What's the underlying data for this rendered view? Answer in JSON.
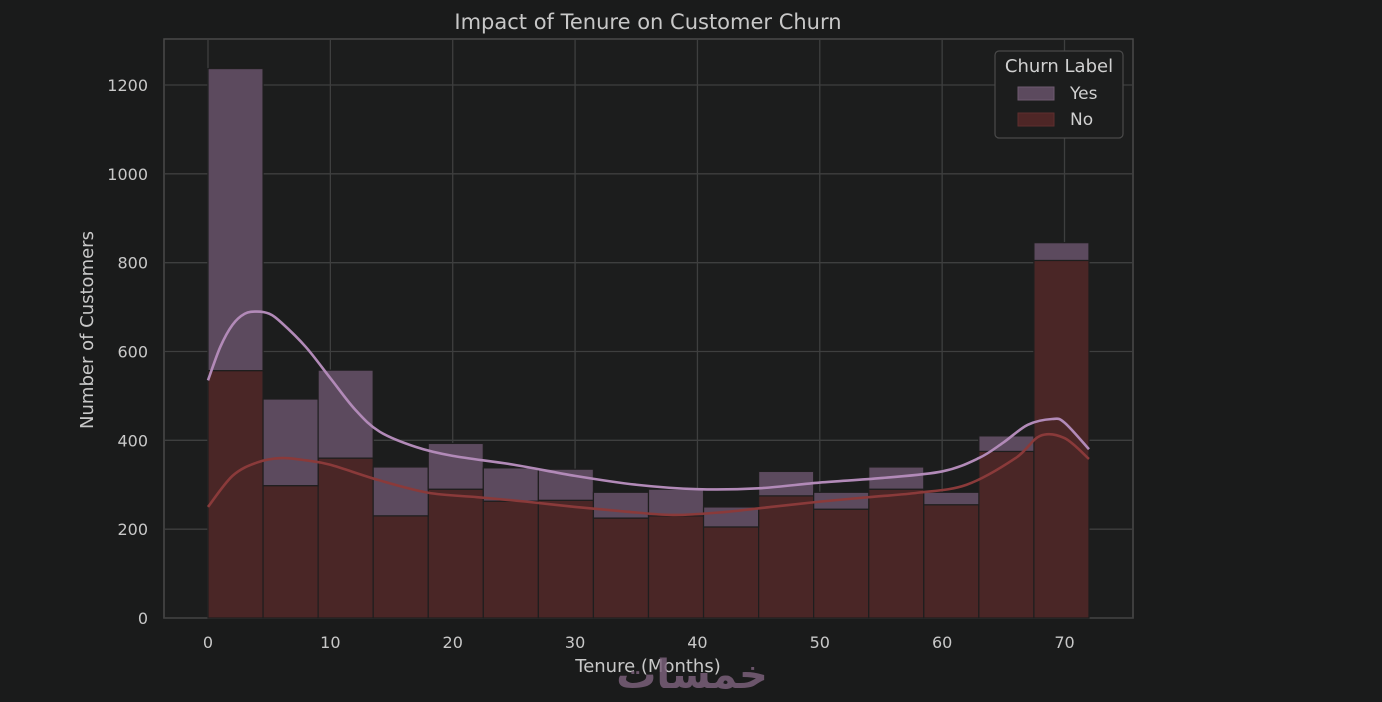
{
  "chart_data": {
    "type": "bar",
    "title": "Impact of Tenure on Customer Churn",
    "xlabel": "Tenure (Months)",
    "ylabel": "Number of Customers",
    "xlim": [
      -3.5,
      76
    ],
    "ylim": [
      0,
      1300
    ],
    "xticks": [
      0,
      10,
      20,
      30,
      40,
      50,
      60,
      70
    ],
    "yticks": [
      0,
      200,
      400,
      600,
      800,
      1000,
      1200
    ],
    "bin_edges": [
      0,
      4.5,
      9,
      13.5,
      18,
      22.5,
      27,
      31.5,
      36,
      40.5,
      45,
      49.5,
      54,
      58.5,
      63,
      67.5,
      72
    ],
    "stacked": true,
    "grid": true,
    "legend": {
      "title": "Churn Label",
      "position": "top-right",
      "entries": [
        "Yes",
        "No"
      ]
    },
    "series": [
      {
        "name": "No",
        "color": "#6a2323",
        "values": [
          557,
          298,
          360,
          230,
          290,
          263,
          265,
          225,
          230,
          205,
          275,
          245,
          290,
          255,
          375,
          805
        ],
        "kde": {
          "x": [
            0,
            2,
            4,
            6,
            8,
            10,
            14,
            18,
            22,
            26,
            30,
            34,
            38,
            42,
            46,
            50,
            54,
            58,
            62,
            66,
            68,
            70,
            72
          ],
          "y": [
            250,
            320,
            350,
            360,
            355,
            345,
            310,
            282,
            272,
            262,
            250,
            240,
            232,
            238,
            250,
            262,
            272,
            282,
            300,
            360,
            410,
            405,
            358
          ]
        }
      },
      {
        "name": "Yes",
        "color": "#7a5a7a",
        "values": [
          680,
          195,
          198,
          110,
          103,
          75,
          70,
          58,
          60,
          45,
          55,
          38,
          50,
          28,
          35,
          40
        ],
        "kde": {
          "x": [
            0,
            1,
            2,
            3,
            4,
            5,
            6,
            8,
            10,
            12,
            14,
            17,
            20,
            25,
            30,
            35,
            40,
            45,
            50,
            55,
            60,
            63,
            65,
            67,
            69,
            70,
            72
          ],
          "y": [
            535,
            610,
            660,
            685,
            690,
            685,
            665,
            610,
            540,
            470,
            420,
            385,
            365,
            345,
            320,
            300,
            290,
            292,
            305,
            315,
            330,
            360,
            395,
            435,
            448,
            440,
            380
          ]
        }
      }
    ]
  },
  "watermark": "خمسات"
}
